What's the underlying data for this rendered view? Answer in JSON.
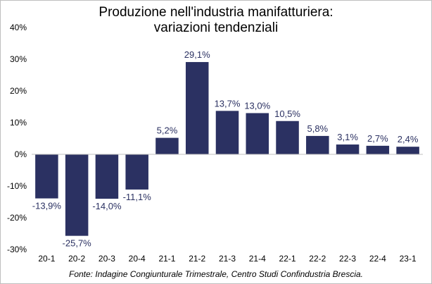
{
  "chart_data": {
    "type": "bar",
    "title_line1": "Produzione nell'industria manifatturiera:",
    "title_line2": "variazioni tendenziali",
    "categories": [
      "20-1",
      "20-2",
      "20-3",
      "20-4",
      "21-1",
      "21-2",
      "21-3",
      "21-4",
      "22-1",
      "22-2",
      "22-3",
      "22-4",
      "23-1"
    ],
    "values": [
      -13.9,
      -25.7,
      -14.0,
      -11.1,
      5.2,
      29.1,
      13.7,
      13.0,
      10.5,
      5.8,
      3.1,
      2.7,
      2.4
    ],
    "value_labels": [
      "-13,9%",
      "-25,7%",
      "-14,0%",
      "-11,1%",
      "5,2%",
      "29,1%",
      "13,7%",
      "13,0%",
      "10,5%",
      "5,8%",
      "3,1%",
      "2,7%",
      "2,4%"
    ],
    "ylim": [
      -30,
      40
    ],
    "yticks": [
      -30,
      -20,
      -10,
      0,
      10,
      20,
      30,
      40
    ],
    "ytick_labels": [
      "-30%",
      "-20%",
      "-10%",
      "0%",
      "10%",
      "20%",
      "30%",
      "40%"
    ],
    "grid": false,
    "bar_color": "#2b3162",
    "label_color": "#2b3162",
    "source": "Fonte: Indagine Congiunturale Trimestrale, Centro Studi Confindustria Brescia."
  }
}
